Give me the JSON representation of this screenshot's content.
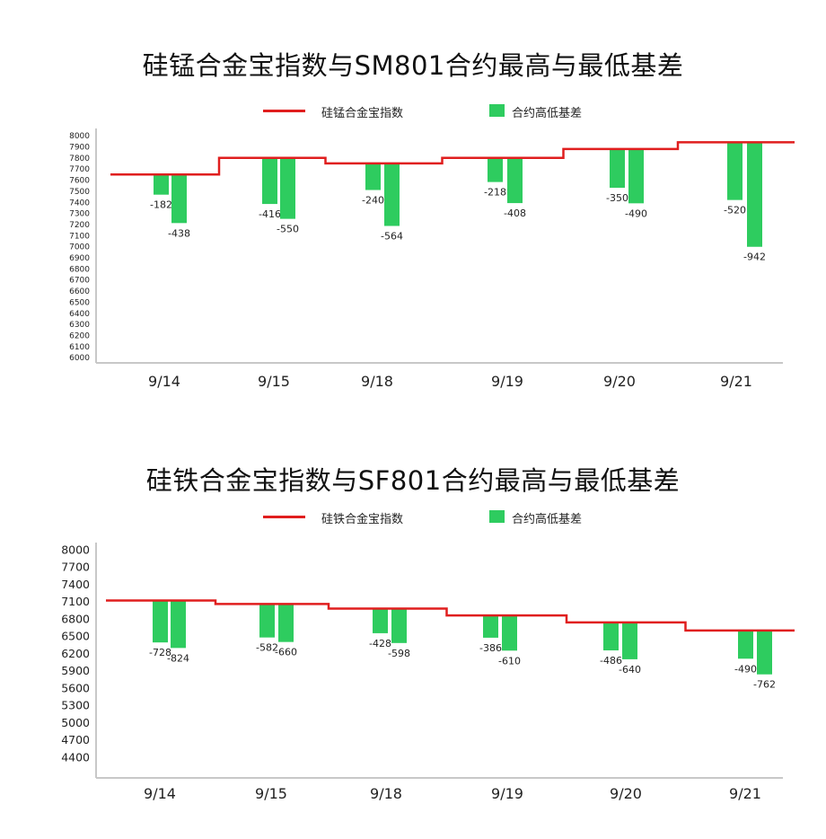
{
  "chart_data": [
    {
      "type": "bar",
      "title": "硅锰合金宝指数与SM801合约最高与最低基差",
      "legend": [
        "硅锰合金宝指数",
        "合约高低基差"
      ],
      "legend_placement": "top",
      "categories": [
        "9/14",
        "9/15",
        "9/18",
        "9/19",
        "9/20",
        "9/21"
      ],
      "yticks": [
        8000,
        7900,
        7800,
        7700,
        7600,
        7500,
        7400,
        7300,
        7200,
        7100,
        7000,
        6900,
        6800,
        6700,
        6600,
        6500,
        6400,
        6300,
        6200,
        6100,
        6000
      ],
      "ylim": [
        6000,
        8000
      ],
      "grid": false,
      "series": [
        {
          "name": "硅锰合金宝指数",
          "type": "step-line",
          "values": [
            7650,
            7800,
            7750,
            7800,
            7880,
            7940
          ]
        },
        {
          "name": "合约高低基差",
          "type": "bar",
          "low_basis": [
            -182,
            -416,
            -240,
            -218,
            -350,
            -520
          ],
          "high_basis": [
            -438,
            -550,
            -564,
            -408,
            -490,
            -942
          ]
        }
      ],
      "data_labels": {
        "low": [
          "-182",
          "-416",
          "-240",
          "-218",
          "-350",
          "-520"
        ],
        "high": [
          "-438",
          "-550",
          "-564",
          "-408",
          "-490",
          "-942"
        ]
      }
    },
    {
      "type": "bar",
      "title": "硅铁合金宝指数与SF801合约最高与最低基差",
      "legend": [
        "硅铁合金宝指数",
        "合约高低基差"
      ],
      "legend_placement": "top",
      "categories": [
        "9/14",
        "9/15",
        "9/18",
        "9/19",
        "9/20",
        "9/21"
      ],
      "yticks": [
        8000,
        7700,
        7400,
        7100,
        6800,
        6500,
        6200,
        5900,
        5600,
        5300,
        5000,
        4700,
        4400
      ],
      "ylim": [
        4100,
        8000
      ],
      "grid": false,
      "series": [
        {
          "name": "硅铁合金宝指数",
          "type": "step-line",
          "values": [
            7120,
            7060,
            6980,
            6860,
            6740,
            6600
          ]
        },
        {
          "name": "合约高低基差",
          "type": "bar",
          "low_basis": [
            -728,
            -582,
            -428,
            -386,
            -486,
            -490
          ],
          "high_basis": [
            -824,
            -660,
            -598,
            -610,
            -640,
            -762
          ]
        }
      ],
      "data_labels": {
        "low": [
          "-728",
          "-582",
          "-428",
          "-386",
          "-486",
          "-490"
        ],
        "high": [
          "-824",
          "-660",
          "-598",
          "-610",
          "-640",
          "-762"
        ]
      }
    }
  ],
  "colors": {
    "index_line": "#e01e1e",
    "basis_bar": "#2ecc5f",
    "axis": "#c8c8c8"
  }
}
